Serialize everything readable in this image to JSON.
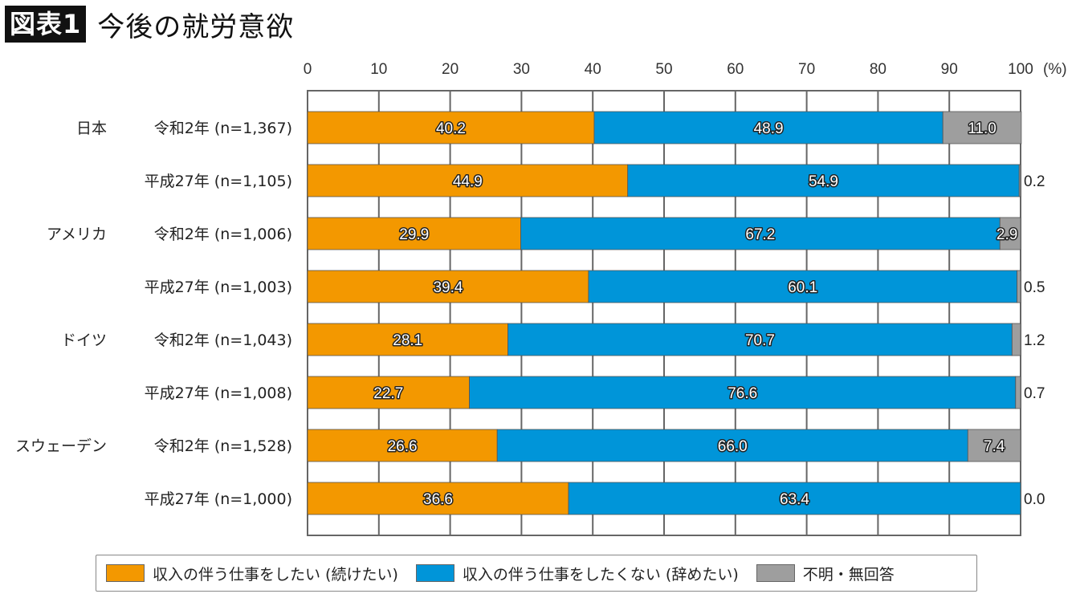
{
  "header": {
    "badge": "図表1",
    "title": "今後の就労意欲"
  },
  "colors": {
    "continue": "#f39800",
    "quit": "#0095d9",
    "unknown": "#9e9e9e",
    "grid": "#666666"
  },
  "chart_data": {
    "type": "bar",
    "orientation": "horizontal",
    "stacked": true,
    "title": "今後の就労意欲",
    "xlabel": "",
    "ylabel": "",
    "xlim": [
      0,
      100
    ],
    "x_ticks": [
      "0",
      "10",
      "20",
      "30",
      "40",
      "50",
      "60",
      "70",
      "80",
      "90",
      "100"
    ],
    "x_unit": "(%)",
    "grid": true,
    "legend_position": "bottom",
    "groups": [
      "日本",
      "アメリカ",
      "ドイツ",
      "スウェーデン"
    ],
    "categories": [
      {
        "group": "日本",
        "label": "令和2年 (n=1,367)"
      },
      {
        "group": "",
        "label": "平成27年 (n=1,105)"
      },
      {
        "group": "アメリカ",
        "label": "令和2年 (n=1,006)"
      },
      {
        "group": "",
        "label": "平成27年 (n=1,003)"
      },
      {
        "group": "ドイツ",
        "label": "令和2年 (n=1,043)"
      },
      {
        "group": "",
        "label": "平成27年 (n=1,008)"
      },
      {
        "group": "スウェーデン",
        "label": "令和2年 (n=1,528)"
      },
      {
        "group": "",
        "label": "平成27年 (n=1,000)"
      }
    ],
    "series": [
      {
        "name": "収入の伴う仕事をしたい (続けたい)",
        "key": "continue",
        "values": [
          40.2,
          44.9,
          29.9,
          39.4,
          28.1,
          22.7,
          26.6,
          36.6
        ],
        "labels": [
          "40.2",
          "44.9",
          "29.9",
          "39.4",
          "28.1",
          "22.7",
          "26.6",
          "36.6"
        ]
      },
      {
        "name": "収入の伴う仕事をしたくない (辞めたい)",
        "key": "quit",
        "values": [
          48.9,
          54.9,
          67.2,
          60.1,
          70.7,
          76.6,
          66.0,
          63.4
        ],
        "labels": [
          "48.9",
          "54.9",
          "67.2",
          "60.1",
          "70.7",
          "76.6",
          "66.0",
          "63.4"
        ]
      },
      {
        "name": "不明・無回答",
        "key": "unknown",
        "values": [
          11.0,
          0.2,
          2.9,
          0.5,
          1.2,
          0.7,
          7.4,
          0.0
        ],
        "labels": [
          "11.0",
          "0.2",
          "2.9",
          "0.5",
          "1.2",
          "0.7",
          "7.4",
          "0.0"
        ],
        "label_outside": [
          false,
          true,
          false,
          true,
          true,
          true,
          false,
          true
        ]
      }
    ]
  },
  "legend": {
    "items": [
      {
        "label": "収入の伴う仕事をしたい (続けたい)",
        "key": "continue"
      },
      {
        "label": "収入の伴う仕事をしたくない (辞めたい)",
        "key": "quit"
      },
      {
        "label": "不明・無回答",
        "key": "unknown"
      }
    ]
  }
}
